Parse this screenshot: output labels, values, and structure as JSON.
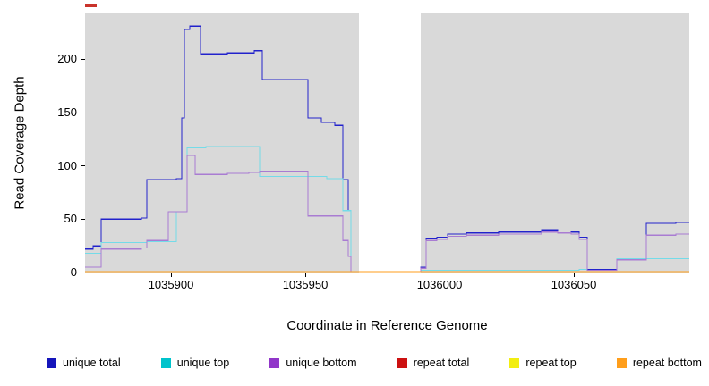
{
  "chart_data": {
    "type": "line",
    "subtype": "step-coverage",
    "title": "",
    "xlabel": "Coordinate in Reference Genome",
    "ylabel": "Read Coverage Depth",
    "xlim": [
      1035868,
      1036093
    ],
    "ylim": [
      0,
      243
    ],
    "xticks": [
      1035900,
      1035950,
      1036000,
      1036050
    ],
    "yticks": [
      0,
      50,
      100,
      150,
      200
    ],
    "plot_bg": "#d9d9d9",
    "gap_region": [
      1035970,
      1035993
    ],
    "legend_position": "bottom",
    "artifact": {
      "color": "#c9332b"
    },
    "series": [
      {
        "name": "unique total",
        "color": "#2222cc",
        "legend_color": "#1515bb",
        "points": [
          [
            1035868,
            22
          ],
          [
            1035871,
            25
          ],
          [
            1035874,
            50
          ],
          [
            1035889,
            51
          ],
          [
            1035891,
            87
          ],
          [
            1035902,
            88
          ],
          [
            1035904,
            145
          ],
          [
            1035905,
            228
          ],
          [
            1035907,
            231
          ],
          [
            1035911,
            205
          ],
          [
            1035921,
            206
          ],
          [
            1035931,
            208
          ],
          [
            1035934,
            181
          ],
          [
            1035951,
            145
          ],
          [
            1035956,
            141
          ],
          [
            1035961,
            138
          ],
          [
            1035964,
            87
          ],
          [
            1035966,
            58
          ],
          [
            1035967,
            0
          ],
          [
            1035993,
            5
          ],
          [
            1035995,
            32
          ],
          [
            1035999,
            33
          ],
          [
            1036003,
            36
          ],
          [
            1036010,
            37
          ],
          [
            1036022,
            38
          ],
          [
            1036038,
            40
          ],
          [
            1036044,
            39
          ],
          [
            1036049,
            38
          ],
          [
            1036052,
            33
          ],
          [
            1036055,
            3
          ],
          [
            1036066,
            13
          ],
          [
            1036077,
            46
          ],
          [
            1036088,
            47
          ]
        ]
      },
      {
        "name": "unique top",
        "color": "#74dbe8",
        "legend_color": "#00c3cc",
        "points": [
          [
            1035868,
            18
          ],
          [
            1035874,
            28
          ],
          [
            1035891,
            29
          ],
          [
            1035902,
            57
          ],
          [
            1035906,
            117
          ],
          [
            1035913,
            118
          ],
          [
            1035933,
            90
          ],
          [
            1035958,
            88
          ],
          [
            1035964,
            58
          ],
          [
            1035967,
            0
          ],
          [
            1035993,
            2
          ],
          [
            1036052,
            3
          ],
          [
            1036055,
            2
          ],
          [
            1036066,
            13
          ]
        ]
      },
      {
        "name": "unique bottom",
        "color": "#a97cd2",
        "legend_color": "#9136c9",
        "points": [
          [
            1035868,
            5
          ],
          [
            1035874,
            22
          ],
          [
            1035889,
            23
          ],
          [
            1035891,
            30
          ],
          [
            1035899,
            57
          ],
          [
            1035906,
            110
          ],
          [
            1035909,
            92
          ],
          [
            1035921,
            93
          ],
          [
            1035929,
            94
          ],
          [
            1035933,
            95
          ],
          [
            1035951,
            53
          ],
          [
            1035964,
            30
          ],
          [
            1035966,
            15
          ],
          [
            1035967,
            0
          ],
          [
            1035993,
            4
          ],
          [
            1035995,
            30
          ],
          [
            1035999,
            31
          ],
          [
            1036003,
            34
          ],
          [
            1036010,
            35
          ],
          [
            1036022,
            36
          ],
          [
            1036038,
            38
          ],
          [
            1036044,
            37
          ],
          [
            1036049,
            36
          ],
          [
            1036052,
            31
          ],
          [
            1036055,
            2
          ],
          [
            1036066,
            12
          ],
          [
            1036077,
            35
          ],
          [
            1036088,
            36
          ]
        ]
      },
      {
        "name": "repeat total",
        "color": "#cc1111",
        "legend_color": "#cc1111",
        "points": [
          [
            1035868,
            0
          ]
        ]
      },
      {
        "name": "repeat top",
        "color": "#f2ee11",
        "legend_color": "#f2ee11",
        "points": [
          [
            1035868,
            0
          ]
        ]
      },
      {
        "name": "repeat bottom",
        "color": "#ff9e1b",
        "legend_color": "#ff9e1b",
        "points": [
          [
            1035868,
            0
          ]
        ]
      }
    ]
  }
}
